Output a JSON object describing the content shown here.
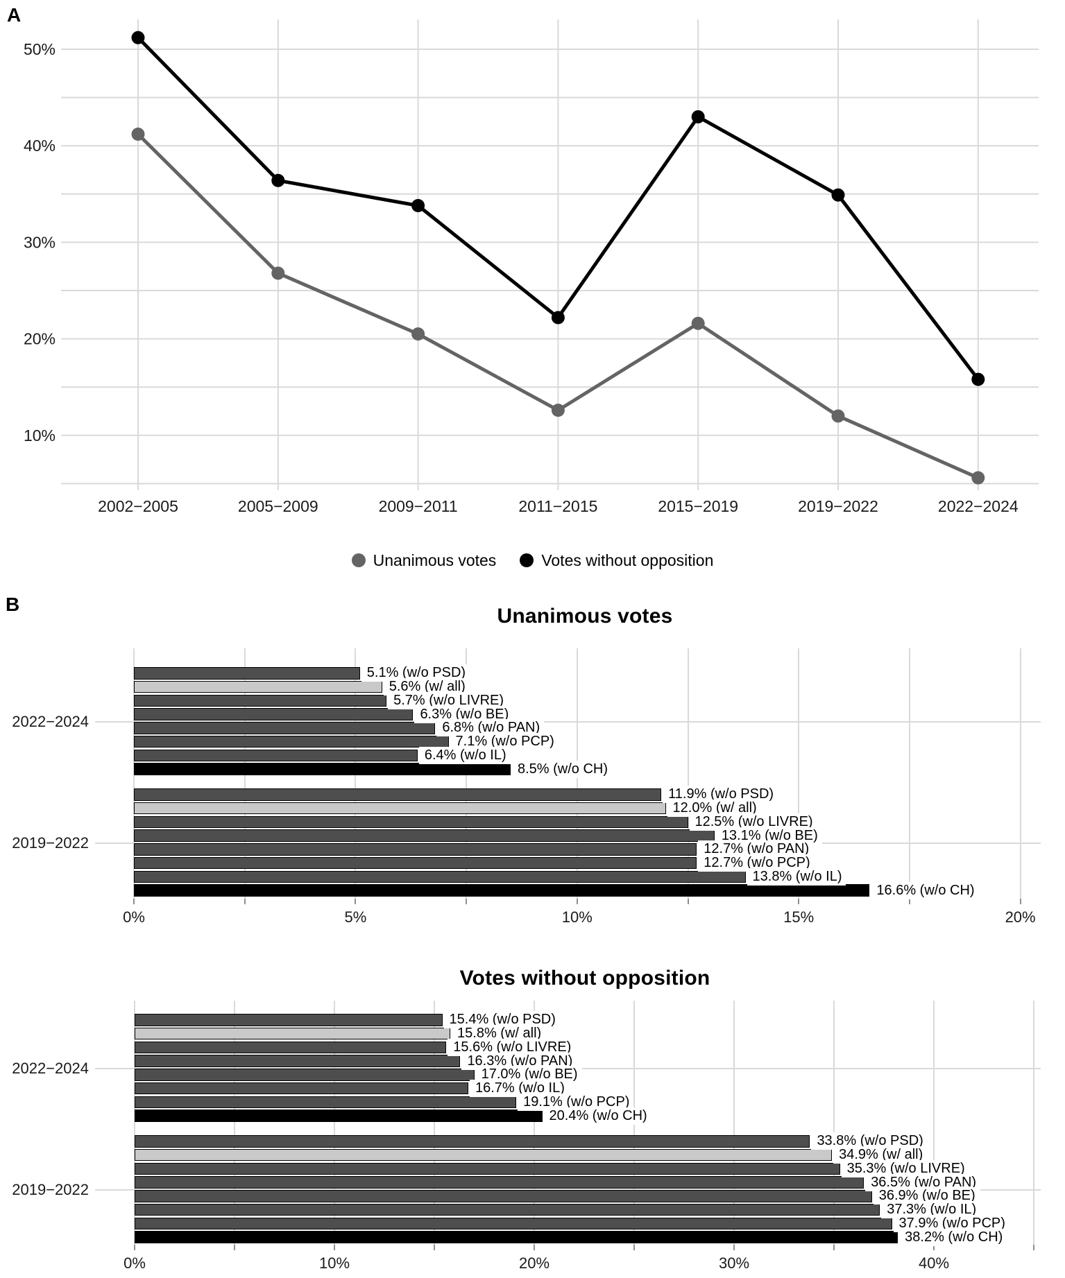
{
  "panel_labels": {
    "a": "A",
    "b": "B"
  },
  "colors": {
    "grid": "#d9d9d9",
    "tick": "#8f8f8f",
    "axis_text": "#1a1a1a",
    "series_gray": "#646464",
    "series_black": "#000000",
    "bar_dark": "#4e4e4e",
    "bar_light": "#c9c9c9",
    "bar_black": "#000000",
    "label_bg": "#ffffff"
  },
  "chart_data": [
    {
      "type": "line",
      "panel": "A",
      "title": "",
      "xlabel": "",
      "ylabel": "",
      "grid": "on",
      "legend_position": "bottom",
      "categories": [
        "2002−2005",
        "2005−2009",
        "2009−2011",
        "2011−2015",
        "2015−2019",
        "2019−2022",
        "2022−2024"
      ],
      "y_ticks": [
        {
          "value": 10,
          "label": "10%"
        },
        {
          "value": 20,
          "label": "20%"
        },
        {
          "value": 30,
          "label": "30%"
        },
        {
          "value": 40,
          "label": "40%"
        },
        {
          "value": 50,
          "label": "50%"
        }
      ],
      "grid_minor_step": 5,
      "ylim": [
        4,
        53
      ],
      "series": [
        {
          "name": "Unanimous votes",
          "color_key": "series_gray",
          "values": [
            41.2,
            26.8,
            20.5,
            12.6,
            21.6,
            12.0,
            5.6
          ]
        },
        {
          "name": "Votes without opposition",
          "color_key": "series_black",
          "values": [
            51.2,
            36.4,
            33.8,
            22.2,
            43.0,
            34.9,
            15.8
          ]
        }
      ]
    },
    {
      "type": "bar",
      "orientation": "horizontal",
      "panel": "B",
      "title": "Unanimous votes",
      "xlim": [
        0,
        20
      ],
      "x_ticks": [
        {
          "pos": 0,
          "label": "0%"
        },
        {
          "pos": 2.5,
          "label": ""
        },
        {
          "pos": 5,
          "label": "5%"
        },
        {
          "pos": 7.5,
          "label": ""
        },
        {
          "pos": 10,
          "label": "10%"
        },
        {
          "pos": 12.5,
          "label": ""
        },
        {
          "pos": 15,
          "label": "15%"
        },
        {
          "pos": 17.5,
          "label": ""
        },
        {
          "pos": 20,
          "label": "20%"
        }
      ],
      "groups": [
        {
          "category": "2022−2024",
          "bars": [
            {
              "value": 5.1,
              "label": "5.1% (w/o PSD)",
              "fill": "dark"
            },
            {
              "value": 5.6,
              "label": "5.6% (w/ all)",
              "fill": "light"
            },
            {
              "value": 5.7,
              "label": "5.7% (w/o LIVRE)",
              "fill": "dark"
            },
            {
              "value": 6.3,
              "label": "6.3% (w/o BE)",
              "fill": "dark"
            },
            {
              "value": 6.8,
              "label": "6.8% (w/o PAN)",
              "fill": "dark"
            },
            {
              "value": 7.1,
              "label": "7.1% (w/o PCP)",
              "fill": "dark"
            },
            {
              "value": 6.4,
              "label": "6.4% (w/o IL)",
              "fill": "dark"
            },
            {
              "value": 8.5,
              "label": "8.5% (w/o CH)",
              "fill": "black"
            }
          ]
        },
        {
          "category": "2019−2022",
          "bars": [
            {
              "value": 11.9,
              "label": "11.9% (w/o PSD)",
              "fill": "dark"
            },
            {
              "value": 12.0,
              "label": "12.0% (w/ all)",
              "fill": "light"
            },
            {
              "value": 12.5,
              "label": "12.5% (w/o LIVRE)",
              "fill": "dark"
            },
            {
              "value": 13.1,
              "label": "13.1% (w/o BE)",
              "fill": "dark"
            },
            {
              "value": 12.7,
              "label": "12.7% (w/o PAN)",
              "fill": "dark"
            },
            {
              "value": 12.7,
              "label": "12.7% (w/o PCP)",
              "fill": "dark"
            },
            {
              "value": 13.8,
              "label": "13.8% (w/o IL)",
              "fill": "dark"
            },
            {
              "value": 16.6,
              "label": "16.6% (w/o CH)",
              "fill": "black"
            }
          ]
        }
      ]
    },
    {
      "type": "bar",
      "orientation": "horizontal",
      "panel": "B",
      "title": "Votes without opposition",
      "xlim": [
        0,
        45
      ],
      "x_ticks": [
        {
          "pos": 0,
          "label": "0%"
        },
        {
          "pos": 5,
          "label": ""
        },
        {
          "pos": 10,
          "label": "10%"
        },
        {
          "pos": 15,
          "label": ""
        },
        {
          "pos": 20,
          "label": "20%"
        },
        {
          "pos": 25,
          "label": ""
        },
        {
          "pos": 30,
          "label": "30%"
        },
        {
          "pos": 35,
          "label": ""
        },
        {
          "pos": 40,
          "label": "40%"
        },
        {
          "pos": 45,
          "label": ""
        }
      ],
      "groups": [
        {
          "category": "2022−2024",
          "bars": [
            {
              "value": 15.4,
              "label": "15.4% (w/o PSD)",
              "fill": "dark"
            },
            {
              "value": 15.8,
              "label": "15.8% (w/ all)",
              "fill": "light"
            },
            {
              "value": 15.6,
              "label": "15.6% (w/o LIVRE)",
              "fill": "dark"
            },
            {
              "value": 16.3,
              "label": "16.3% (w/o PAN)",
              "fill": "dark"
            },
            {
              "value": 17.0,
              "label": "17.0% (w/o BE)",
              "fill": "dark"
            },
            {
              "value": 16.7,
              "label": "16.7% (w/o IL)",
              "fill": "dark"
            },
            {
              "value": 19.1,
              "label": "19.1% (w/o PCP)",
              "fill": "dark"
            },
            {
              "value": 20.4,
              "label": "20.4% (w/o CH)",
              "fill": "black"
            }
          ]
        },
        {
          "category": "2019−2022",
          "bars": [
            {
              "value": 33.8,
              "label": "33.8% (w/o PSD)",
              "fill": "dark"
            },
            {
              "value": 34.9,
              "label": "34.9% (w/ all)",
              "fill": "light"
            },
            {
              "value": 35.3,
              "label": "35.3% (w/o LIVRE)",
              "fill": "dark"
            },
            {
              "value": 36.5,
              "label": "36.5% (w/o PAN)",
              "fill": "dark"
            },
            {
              "value": 36.9,
              "label": "36.9% (w/o BE)",
              "fill": "dark"
            },
            {
              "value": 37.3,
              "label": "37.3% (w/o IL)",
              "fill": "dark"
            },
            {
              "value": 37.9,
              "label": "37.9% (w/o PCP)",
              "fill": "dark"
            },
            {
              "value": 38.2,
              "label": "38.2% (w/o CH)",
              "fill": "black"
            }
          ]
        }
      ]
    }
  ]
}
